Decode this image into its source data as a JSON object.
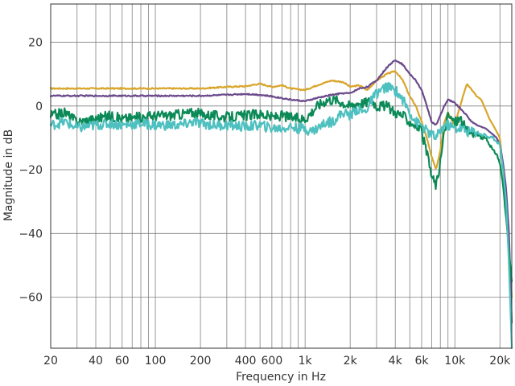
{
  "chart_data": {
    "type": "line",
    "title": "",
    "xlabel": "Frequency in Hz",
    "ylabel": "Magnitude in dB",
    "xscale": "log",
    "xlim": [
      20,
      24000
    ],
    "ylim": [
      -76,
      32
    ],
    "grid": true,
    "x_ticks": [
      {
        "value": 20,
        "label": "20"
      },
      {
        "value": 40,
        "label": "40"
      },
      {
        "value": 60,
        "label": "60"
      },
      {
        "value": 100,
        "label": "100"
      },
      {
        "value": 200,
        "label": "200"
      },
      {
        "value": 400,
        "label": "400"
      },
      {
        "value": 600,
        "label": "600"
      },
      {
        "value": 1000,
        "label": "1k"
      },
      {
        "value": 2000,
        "label": "2k"
      },
      {
        "value": 4000,
        "label": "4k"
      },
      {
        "value": 6000,
        "label": "6k"
      },
      {
        "value": 10000,
        "label": "10k"
      },
      {
        "value": 20000,
        "label": "20k"
      }
    ],
    "y_ticks": [
      {
        "value": 20,
        "label": "20"
      },
      {
        "value": 0,
        "label": "0"
      },
      {
        "value": -20,
        "label": "−20"
      },
      {
        "value": -40,
        "label": "−40"
      },
      {
        "value": -60,
        "label": "−60"
      }
    ],
    "series": [
      {
        "color": "#d9a52b",
        "x": [
          20,
          100,
          200,
          300,
          400,
          500,
          600,
          700,
          800,
          1000,
          1200,
          1500,
          1800,
          2000,
          2300,
          2600,
          3000,
          3500,
          4000,
          4500,
          5000,
          5500,
          6000,
          6500,
          7000,
          7500,
          8000,
          8500,
          9000,
          10000,
          11000,
          12000,
          13000,
          14000,
          15000,
          16000,
          17000,
          18000,
          19000,
          20000,
          21000,
          22000,
          23000,
          24000
        ],
        "y": [
          5.5,
          5.5,
          5.5,
          6,
          6.2,
          7,
          6,
          6.5,
          5.5,
          5,
          6.5,
          8,
          7.5,
          6,
          6.5,
          5,
          8,
          10,
          11,
          8,
          3,
          0,
          -5,
          -10,
          -16,
          -20,
          -14,
          -5,
          -2,
          -6,
          1,
          7,
          5,
          3,
          2,
          -1,
          -4,
          -6,
          -8,
          -10,
          -20,
          -35,
          -45,
          -60
        ]
      },
      {
        "color": "#6b4a8c",
        "x": [
          20,
          100,
          200,
          300,
          400,
          500,
          600,
          700,
          800,
          1000,
          1200,
          1500,
          1800,
          2000,
          2300,
          2600,
          3000,
          3500,
          4000,
          4500,
          5000,
          5500,
          6000,
          6500,
          7000,
          7500,
          8000,
          8500,
          9000,
          10000,
          11000,
          12000,
          13000,
          14000,
          15000,
          16000,
          17000,
          18000,
          19000,
          20000,
          21000,
          22000,
          23000,
          24000
        ],
        "y": [
          3.2,
          3.2,
          3.2,
          3.5,
          3.8,
          3.5,
          3,
          2.5,
          2,
          1.5,
          2.5,
          3.5,
          4,
          4,
          5.5,
          6,
          8,
          12,
          14.5,
          13,
          10,
          8,
          5,
          0,
          -5,
          -6,
          -3,
          0,
          2,
          1,
          -1,
          -3,
          -5,
          -6,
          -6.5,
          -7,
          -8,
          -9,
          -10,
          -12,
          -18,
          -26,
          -40,
          -68
        ]
      },
      {
        "color": "#0b8a57",
        "x": [
          20,
          25,
          30,
          40,
          50,
          60,
          80,
          100,
          120,
          150,
          180,
          200,
          250,
          300,
          400,
          500,
          600,
          700,
          800,
          900,
          1000,
          1100,
          1200,
          1300,
          1400,
          1500,
          1600,
          1800,
          2000,
          2200,
          2500,
          2800,
          3000,
          3500,
          4000,
          4500,
          5000,
          5500,
          6000,
          6500,
          7000,
          7500,
          8000,
          8500,
          9000,
          10000,
          11000,
          12000,
          13000,
          14000,
          15000,
          16000,
          17000,
          18000,
          19000,
          20000,
          21000,
          22000,
          23000,
          24000
        ],
        "y": [
          -3,
          -2,
          -5,
          -4,
          -3,
          -4,
          -3.5,
          -3,
          -3,
          -2.5,
          -2,
          -2.5,
          -3,
          -3.5,
          -3,
          -2.5,
          -3.5,
          -3,
          -3.5,
          -4,
          -4,
          -2,
          0,
          1,
          2,
          2,
          2,
          1,
          0,
          1,
          1,
          2,
          0,
          0,
          -2,
          -3,
          -5,
          -6,
          -8,
          -15,
          -22,
          -25,
          -18,
          -8,
          -3,
          -5,
          -4,
          -8,
          -8,
          -9,
          -10,
          -10,
          -12,
          -14,
          -15,
          -18,
          -25,
          -35,
          -46,
          -55
        ]
      },
      {
        "color": "#4dc0bf",
        "x": [
          20,
          25,
          30,
          40,
          50,
          60,
          80,
          100,
          120,
          150,
          180,
          200,
          250,
          300,
          400,
          500,
          600,
          700,
          800,
          900,
          1000,
          1100,
          1200,
          1300,
          1400,
          1500,
          1600,
          1800,
          2000,
          2200,
          2500,
          2800,
          3000,
          3500,
          4000,
          4500,
          5000,
          5500,
          6000,
          6500,
          7000,
          7500,
          8000,
          8500,
          9000,
          10000,
          11000,
          12000,
          13000,
          14000,
          15000,
          16000,
          17000,
          18000,
          19000,
          20000,
          21000,
          22000,
          23000,
          24000
        ],
        "y": [
          -6,
          -5,
          -7,
          -6,
          -5.5,
          -6,
          -5.5,
          -6,
          -6,
          -6,
          -5,
          -5.5,
          -6,
          -6,
          -6.5,
          -6,
          -7,
          -7,
          -6.5,
          -7,
          -7,
          -8,
          -7,
          -6,
          -5,
          -5,
          -4,
          -2,
          -3,
          -1,
          -2,
          2,
          4,
          6,
          5,
          2,
          -2,
          -5,
          -6,
          -8,
          -9,
          -10,
          -8,
          -6,
          -6,
          -7,
          -7,
          -8,
          -8,
          -8,
          -9,
          -9,
          -10,
          -10,
          -11,
          -12,
          -20,
          -30,
          -50,
          -76
        ]
      }
    ]
  }
}
